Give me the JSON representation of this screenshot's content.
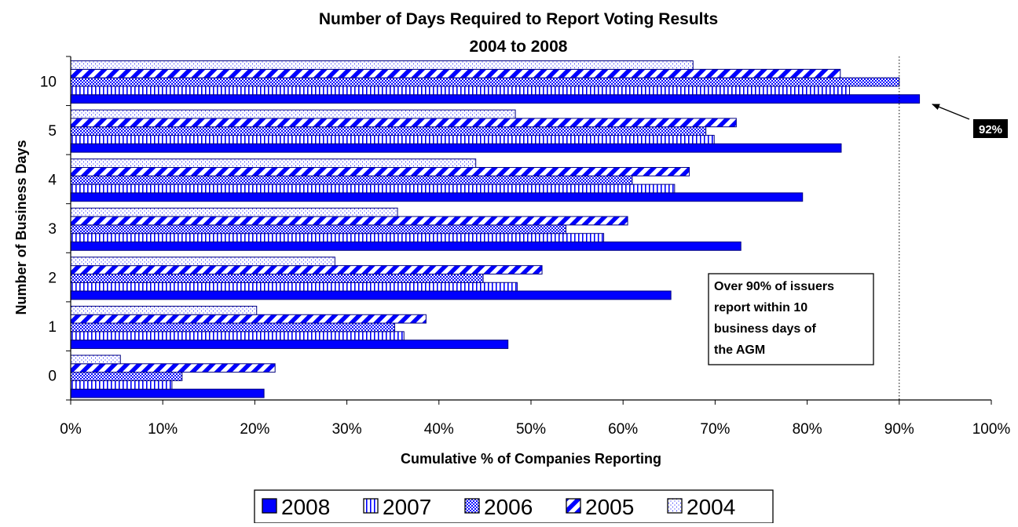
{
  "chart_data": {
    "type": "bar",
    "orientation": "horizontal",
    "title": "Number of Days Required to Report Voting Results",
    "subtitle": "2004 to 2008",
    "xlabel": "Cumulative % of Companies Reporting",
    "ylabel": "Number of Business Days",
    "xlim": [
      0,
      100
    ],
    "x_ticks": [
      "0%",
      "10%",
      "20%",
      "30%",
      "40%",
      "50%",
      "60%",
      "70%",
      "80%",
      "90%",
      "100%"
    ],
    "categories": [
      "0",
      "1",
      "2",
      "3",
      "4",
      "5",
      "10"
    ],
    "series": [
      {
        "name": "2008",
        "pattern": "solid",
        "values": [
          21,
          47.5,
          65.2,
          72.8,
          79.5,
          83.7,
          92.2
        ]
      },
      {
        "name": "2007",
        "pattern": "vertical-lines",
        "values": [
          11,
          36.2,
          48.5,
          57.9,
          65.6,
          69.9,
          84.6
        ]
      },
      {
        "name": "2006",
        "pattern": "checker",
        "values": [
          12.1,
          35.2,
          44.8,
          53.8,
          61,
          69,
          90
        ]
      },
      {
        "name": "2005",
        "pattern": "diagonal",
        "values": [
          22.2,
          38.6,
          51.2,
          60.5,
          67.2,
          72.3,
          83.6
        ]
      },
      {
        "name": "2004",
        "pattern": "dots",
        "values": [
          5.4,
          20.2,
          28.7,
          35.5,
          44,
          48.3,
          67.6
        ]
      }
    ],
    "reference_line": {
      "x": 90,
      "style": "dotted"
    },
    "callout": {
      "label": "92%",
      "arrow_to": "2008 bar at 10 days"
    },
    "annotation": [
      "Over 90% of issuers",
      "report within 10",
      "business days of",
      "the AGM"
    ],
    "legend_placement": "bottom",
    "grid": false,
    "colors": {
      "bar_fill": "#0000ff",
      "bar_border": "#000080",
      "pattern_background": "#ffffff"
    }
  }
}
